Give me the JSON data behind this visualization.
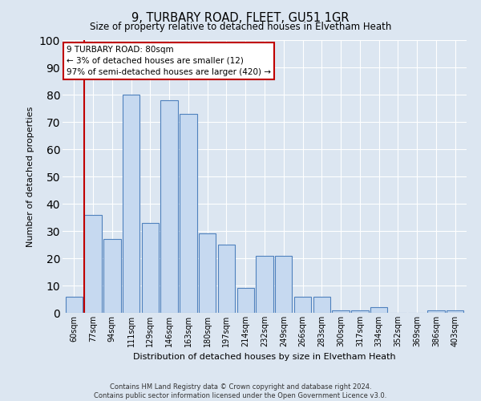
{
  "title_line1": "9, TURBARY ROAD, FLEET, GU51 1GR",
  "title_line2": "Size of property relative to detached houses in Elvetham Heath",
  "xlabel": "Distribution of detached houses by size in Elvetham Heath",
  "ylabel": "Number of detached properties",
  "categories": [
    "60sqm",
    "77sqm",
    "94sqm",
    "111sqm",
    "129sqm",
    "146sqm",
    "163sqm",
    "180sqm",
    "197sqm",
    "214sqm",
    "232sqm",
    "249sqm",
    "266sqm",
    "283sqm",
    "300sqm",
    "317sqm",
    "334sqm",
    "352sqm",
    "369sqm",
    "386sqm",
    "403sqm"
  ],
  "values": [
    6,
    36,
    27,
    80,
    33,
    78,
    73,
    29,
    25,
    9,
    21,
    21,
    6,
    6,
    1,
    1,
    2,
    0,
    0,
    1,
    1
  ],
  "bar_color": "#c6d9f0",
  "bar_edge_color": "#4f81bd",
  "highlight_bar_index": 1,
  "highlight_color": "#c00000",
  "ylim": [
    0,
    100
  ],
  "yticks": [
    0,
    10,
    20,
    30,
    40,
    50,
    60,
    70,
    80,
    90,
    100
  ],
  "annotation_text": "9 TURBARY ROAD: 80sqm\n← 3% of detached houses are smaller (12)\n97% of semi-detached houses are larger (420) →",
  "annotation_box_color": "#ffffff",
  "annotation_box_edge_color": "#c00000",
  "footer_text": "Contains HM Land Registry data © Crown copyright and database right 2024.\nContains public sector information licensed under the Open Government Licence v3.0.",
  "background_color": "#dce6f1",
  "plot_background_color": "#dce6f1",
  "grid_color": "#ffffff"
}
